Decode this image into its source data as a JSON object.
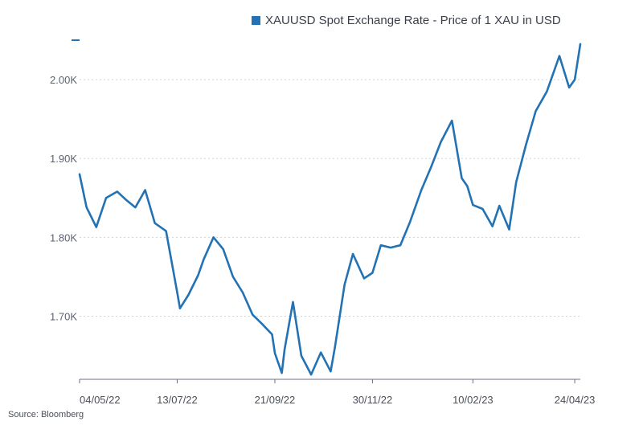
{
  "chart_data": {
    "type": "line",
    "title": "",
    "xlabel": "",
    "ylabel": "",
    "series": [
      {
        "name": "XAUUSD Spot Exchange Rate - Price of 1 XAU in USD",
        "color": "#2272b4",
        "x": [
          "2022-05-04",
          "2022-05-09",
          "2022-05-16",
          "2022-05-23",
          "2022-05-31",
          "2022-06-06",
          "2022-06-13",
          "2022-06-20",
          "2022-06-27",
          "2022-07-05",
          "2022-07-13",
          "2022-07-15",
          "2022-07-21",
          "2022-07-28",
          "2022-08-01",
          "2022-08-08",
          "2022-08-15",
          "2022-08-22",
          "2022-08-29",
          "2022-09-05",
          "2022-09-12",
          "2022-09-19",
          "2022-09-21",
          "2022-09-26",
          "2022-09-28",
          "2022-10-04",
          "2022-10-10",
          "2022-10-17",
          "2022-10-24",
          "2022-10-31",
          "2022-11-03",
          "2022-11-10",
          "2022-11-16",
          "2022-11-24",
          "2022-11-30",
          "2022-12-06",
          "2022-12-13",
          "2022-12-20",
          "2022-12-27",
          "2023-01-04",
          "2023-01-11",
          "2023-01-18",
          "2023-01-26",
          "2023-02-02",
          "2023-02-06",
          "2023-02-10",
          "2023-02-17",
          "2023-02-24",
          "2023-03-01",
          "2023-03-08",
          "2023-03-13",
          "2023-03-20",
          "2023-03-27",
          "2023-04-04",
          "2023-04-13",
          "2023-04-20",
          "2023-04-24",
          "2023-04-28"
        ],
        "values": [
          1880,
          1838,
          1813,
          1850,
          1858,
          1848,
          1838,
          1860,
          1818,
          1808,
          1730,
          1710,
          1727,
          1752,
          1772,
          1800,
          1785,
          1750,
          1730,
          1702,
          1690,
          1677,
          1653,
          1628,
          1658,
          1718,
          1650,
          1626,
          1654,
          1630,
          1660,
          1740,
          1779,
          1748,
          1755,
          1790,
          1787,
          1790,
          1820,
          1860,
          1889,
          1921,
          1948,
          1875,
          1865,
          1841,
          1836,
          1814,
          1840,
          1810,
          1870,
          1917,
          1960,
          1985,
          2030,
          1990,
          2000,
          2045
        ]
      }
    ],
    "ylim": [
      1620,
      2050
    ],
    "y_ticks": [
      1700,
      1800,
      1900,
      2000
    ],
    "y_tick_labels": [
      "1.70K",
      "1.80K",
      "1.90K",
      "2.00K"
    ],
    "x_ticks": [
      "2022-05-04",
      "2022-07-13",
      "2022-09-21",
      "2022-11-30",
      "2023-02-10",
      "2023-04-24"
    ],
    "x_tick_labels": [
      "04/05/22",
      "13/07/22",
      "21/09/22",
      "30/11/22",
      "10/02/23",
      "24/04/23"
    ],
    "grid": "horizontal dotted",
    "legend_position": "top"
  },
  "legend": {
    "label": "XAUUSD Spot Exchange Rate - Price of 1 XAU in USD",
    "color": "#2272b4"
  },
  "footer": {
    "source": "Source: Bloomberg"
  }
}
